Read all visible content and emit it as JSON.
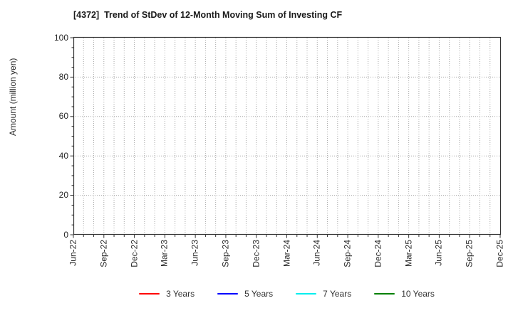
{
  "chart_data": {
    "type": "line",
    "title": "[4372]  Trend of StDev of 12-Month Moving Sum of Investing CF",
    "xlabel": "",
    "ylabel": "Amount (million yen)",
    "ylim": [
      0,
      100
    ],
    "yticks": [
      0,
      20,
      40,
      60,
      80,
      100
    ],
    "y_minor_step": 5,
    "x_major_labels": [
      "Jun-22",
      "Sep-22",
      "Dec-22",
      "Mar-23",
      "Jun-23",
      "Sep-23",
      "Dec-23",
      "Mar-24",
      "Jun-24",
      "Sep-24",
      "Dec-24",
      "Mar-25",
      "Jun-25",
      "Sep-25",
      "Dec-25"
    ],
    "x_months_per_major": 3,
    "x_minor_interval_months": 1,
    "grid": "dotted",
    "grid_color": "#aaaaaa",
    "axis_color": "#333333",
    "text_color": "#262626",
    "plot_empty": true,
    "legend_position": "bottom",
    "series": [
      {
        "name": "3 Years",
        "color": "#ff0000",
        "x": [],
        "values": []
      },
      {
        "name": "5 Years",
        "color": "#0000ff",
        "x": [],
        "values": []
      },
      {
        "name": "7 Years",
        "color": "#00eeee",
        "x": [],
        "values": []
      },
      {
        "name": "10 Years",
        "color": "#008000",
        "x": [],
        "values": []
      }
    ]
  }
}
